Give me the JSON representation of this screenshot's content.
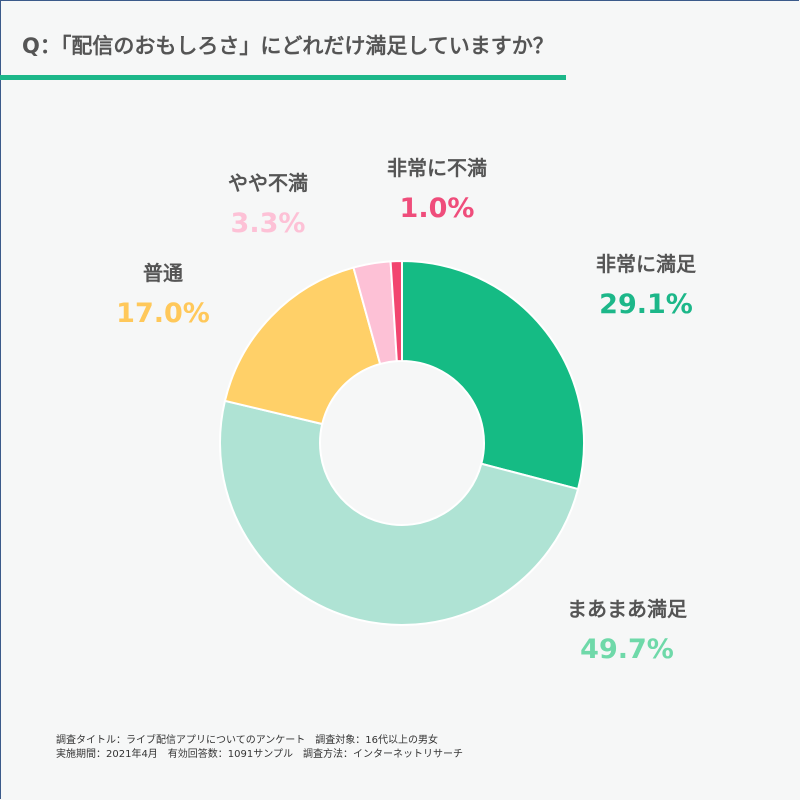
{
  "header": {
    "title": "Q：「配信のおもしろさ」にどれだけ満足していますか？",
    "accent_color": "#1cb789"
  },
  "chart_data": {
    "type": "pie",
    "subtype": "donut",
    "title": "Q：「配信のおもしろさ」にどれだけ満足していますか？",
    "categories": [
      "非常に満足",
      "まあまあ満足",
      "普通",
      "やや不満",
      "非常に不満"
    ],
    "values": [
      29.1,
      49.7,
      17.0,
      3.3,
      1.0
    ],
    "unit": "%",
    "colors": [
      "#15bb84",
      "#afe3d4",
      "#ffd068",
      "#fdc1d6",
      "#f2456f"
    ],
    "label_colors": [
      "#1cb789",
      "#6fd9a9",
      "#ffc85a",
      "#fdc1d6",
      "#ef4d7b"
    ],
    "start_angle_deg": 0,
    "direction": "clockwise",
    "legend": "none (direct labels)"
  },
  "labels": [
    {
      "name": "非常に満足",
      "pct": "29.1%"
    },
    {
      "name": "まあまあ満足",
      "pct": "49.7%"
    },
    {
      "name": "普通",
      "pct": "17.0%"
    },
    {
      "name": "やや不満",
      "pct": "3.3%"
    },
    {
      "name": "非常に不満",
      "pct": "1.0%"
    }
  ],
  "footer": {
    "line1": "調査タイトル：ライブ配信アプリについてのアンケート　調査対象：16代以上の男女",
    "line2": "実施期間：2021年4月　有効回答数：1091サンプル　調査方法：インターネットリサーチ"
  }
}
